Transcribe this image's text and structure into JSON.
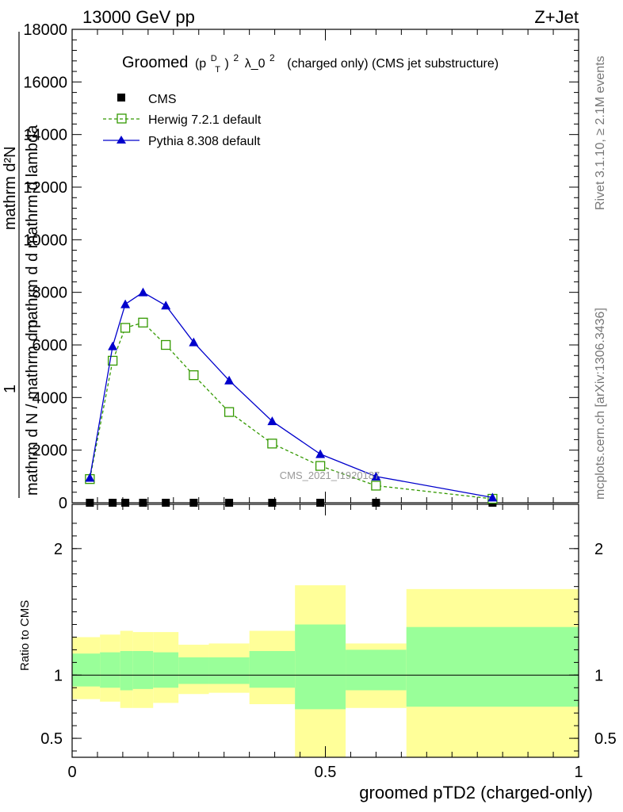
{
  "header": {
    "energy": "13000 GeV pp",
    "process": "Z+Jet"
  },
  "side_labels": {
    "rivet": "Rivet 3.1.10, ≥ 2.1M events",
    "mcplots": "mcplots.cern.ch [arXiv:1306.3436]"
  },
  "chart_data": [
    {
      "type": "line",
      "title_parts": {
        "groomed": "Groomed",
        "p": "(p",
        "d": "D",
        "t": "T",
        "close": ")",
        "exp": "2",
        "lambda": "λ_0",
        "exp2": "2",
        "tail": "(charged only) (CMS jet substructure)"
      },
      "ylabel_parts": {
        "one": "1",
        "den": "mathrm d N / mathrm d p",
        "num": "mathrm d²N",
        "mid": "mathrm d d mathrm d lambda"
      },
      "watermark": "CMS_2021_I1920187",
      "xlim": [
        0,
        1
      ],
      "ylim": [
        0,
        18000
      ],
      "yticks": [
        {
          "value": 0,
          "label": "0"
        },
        {
          "value": 2000,
          "label": "2000"
        },
        {
          "value": 4000,
          "label": "4000"
        },
        {
          "value": 6000,
          "label": "6000"
        },
        {
          "value": 8000,
          "label": "8000"
        },
        {
          "value": 10000,
          "label": "10000"
        },
        {
          "value": 12000,
          "label": "12000"
        },
        {
          "value": 14000,
          "label": "14000"
        },
        {
          "value": 16000,
          "label": "16000"
        },
        {
          "value": 18000,
          "label": "18000"
        }
      ],
      "legend_placement": "top-left",
      "series": [
        {
          "name": "CMS",
          "color": "#000000",
          "marker": "square",
          "x": [
            0.035,
            0.08,
            0.105,
            0.14,
            0.185,
            0.24,
            0.31,
            0.395,
            0.49,
            0.6,
            0.83
          ],
          "y": [
            0,
            0,
            0,
            0,
            0,
            0,
            0,
            0,
            0,
            0,
            0
          ]
        },
        {
          "name": "Herwig 7.2.1 default",
          "color": "#339900",
          "marker": "open-square",
          "dash": true,
          "x": [
            0.035,
            0.08,
            0.105,
            0.14,
            0.185,
            0.24,
            0.31,
            0.395,
            0.49,
            0.6,
            0.83
          ],
          "y": [
            900,
            5400,
            6650,
            6850,
            6000,
            4850,
            3450,
            2250,
            1400,
            650,
            150
          ]
        },
        {
          "name": "Pythia 8.308 default",
          "color": "#0000cc",
          "marker": "triangle",
          "x": [
            0.035,
            0.08,
            0.105,
            0.14,
            0.185,
            0.24,
            0.31,
            0.395,
            0.49,
            0.6,
            0.83
          ],
          "y": [
            950,
            5950,
            7550,
            8000,
            7500,
            6100,
            4650,
            3100,
            1850,
            1000,
            200
          ]
        }
      ]
    },
    {
      "type": "area",
      "ylabel": "Ratio to CMS",
      "xlabel": "groomed pTD2 (charged-only)",
      "xlim": [
        0,
        1
      ],
      "ylim": [
        0.35,
        2.35
      ],
      "xticks": [
        {
          "value": 0,
          "label": "0"
        },
        {
          "value": 0.5,
          "label": "0.5"
        },
        {
          "value": 1,
          "label": "1"
        }
      ],
      "yticks": [
        {
          "value": 0.5,
          "label": "0.5"
        },
        {
          "value": 1,
          "label": "1"
        },
        {
          "value": 2,
          "label": "2"
        }
      ],
      "bands": [
        {
          "x0": 0.0,
          "x1": 0.055,
          "total": [
            0.81,
            1.3
          ],
          "stat": [
            0.91,
            1.17
          ]
        },
        {
          "x0": 0.055,
          "x1": 0.095,
          "total": [
            0.79,
            1.32
          ],
          "stat": [
            0.9,
            1.18
          ]
        },
        {
          "x0": 0.095,
          "x1": 0.12,
          "total": [
            0.74,
            1.35
          ],
          "stat": [
            0.88,
            1.19
          ]
        },
        {
          "x0": 0.12,
          "x1": 0.16,
          "total": [
            0.74,
            1.34
          ],
          "stat": [
            0.89,
            1.19
          ]
        },
        {
          "x0": 0.16,
          "x1": 0.21,
          "total": [
            0.78,
            1.34
          ],
          "stat": [
            0.9,
            1.18
          ]
        },
        {
          "x0": 0.21,
          "x1": 0.27,
          "total": [
            0.85,
            1.24
          ],
          "stat": [
            0.93,
            1.14
          ]
        },
        {
          "x0": 0.27,
          "x1": 0.35,
          "total": [
            0.86,
            1.25
          ],
          "stat": [
            0.93,
            1.14
          ]
        },
        {
          "x0": 0.35,
          "x1": 0.44,
          "total": [
            0.77,
            1.35
          ],
          "stat": [
            0.9,
            1.19
          ]
        },
        {
          "x0": 0.44,
          "x1": 0.54,
          "total": [
            0.35,
            1.71
          ],
          "stat": [
            0.73,
            1.4
          ]
        },
        {
          "x0": 0.54,
          "x1": 0.66,
          "total": [
            0.74,
            1.25
          ],
          "stat": [
            0.88,
            1.2
          ]
        },
        {
          "x0": 0.66,
          "x1": 1.0,
          "total": [
            0.35,
            1.68
          ],
          "stat": [
            0.75,
            1.38
          ]
        }
      ],
      "band_colors": {
        "total": "#ffff99",
        "stat": "#99ff99"
      }
    }
  ]
}
